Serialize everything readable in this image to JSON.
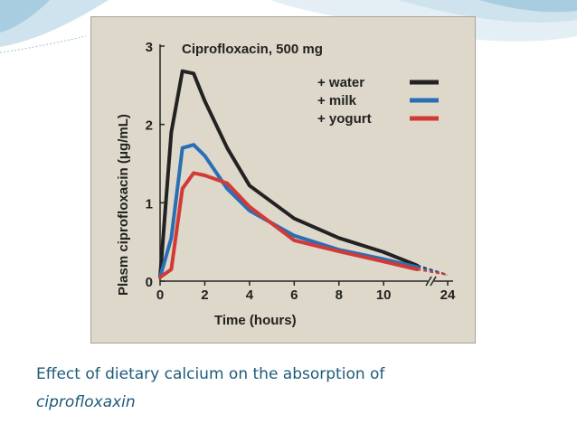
{
  "slide": {
    "caption_line1": "Effect of dietary calcium on the absorption of",
    "caption_line2": "ciprofloxaxin",
    "theme_colors": {
      "wave_light": "#cfe3ee",
      "wave_mid": "#a8cde0",
      "caption_text": "#1d5a78",
      "panel_bg": "#ddd8ca"
    }
  },
  "chart_data": {
    "type": "line",
    "title": "Ciprofloxacin, 500 mg",
    "xlabel": "Time (hours)",
    "ylabel": "Plasm ciprofloxacin (μg/mL)",
    "xlim": [
      0,
      12.5
    ],
    "ylim": [
      0,
      3
    ],
    "x_ticks": [
      0,
      2,
      4,
      6,
      8,
      10
    ],
    "x_tick_labels": [
      "0",
      "2",
      "4",
      "6",
      "8",
      "10"
    ],
    "x_break_label": "24",
    "y_ticks": [
      0,
      1,
      2,
      3
    ],
    "y_tick_labels": [
      "0",
      "1",
      "2",
      "3"
    ],
    "legend_position": "top-right",
    "series": [
      {
        "name": "+ water",
        "color": "#222222",
        "x": [
          0,
          0.5,
          1,
          1.5,
          2,
          3,
          4,
          6,
          8,
          10,
          11.5
        ],
        "y": [
          0.05,
          1.9,
          2.68,
          2.65,
          2.3,
          1.7,
          1.22,
          0.8,
          0.55,
          0.37,
          0.2
        ],
        "x_24h": 0.08
      },
      {
        "name": "+ milk",
        "color": "#2a6fb5",
        "x": [
          0,
          0.5,
          1,
          1.5,
          2,
          3,
          4,
          6,
          8,
          10,
          11.5
        ],
        "y": [
          0.05,
          0.55,
          1.7,
          1.74,
          1.6,
          1.18,
          0.9,
          0.58,
          0.4,
          0.28,
          0.18
        ],
        "x_24h": 0.08
      },
      {
        "name": "+ yogurt",
        "color": "#d33a35",
        "x": [
          0,
          0.5,
          1,
          1.5,
          2,
          3,
          4,
          6,
          8,
          10,
          11.5
        ],
        "y": [
          0.05,
          0.15,
          1.18,
          1.38,
          1.35,
          1.25,
          0.95,
          0.52,
          0.38,
          0.25,
          0.15
        ],
        "x_24h": 0.08
      }
    ]
  }
}
